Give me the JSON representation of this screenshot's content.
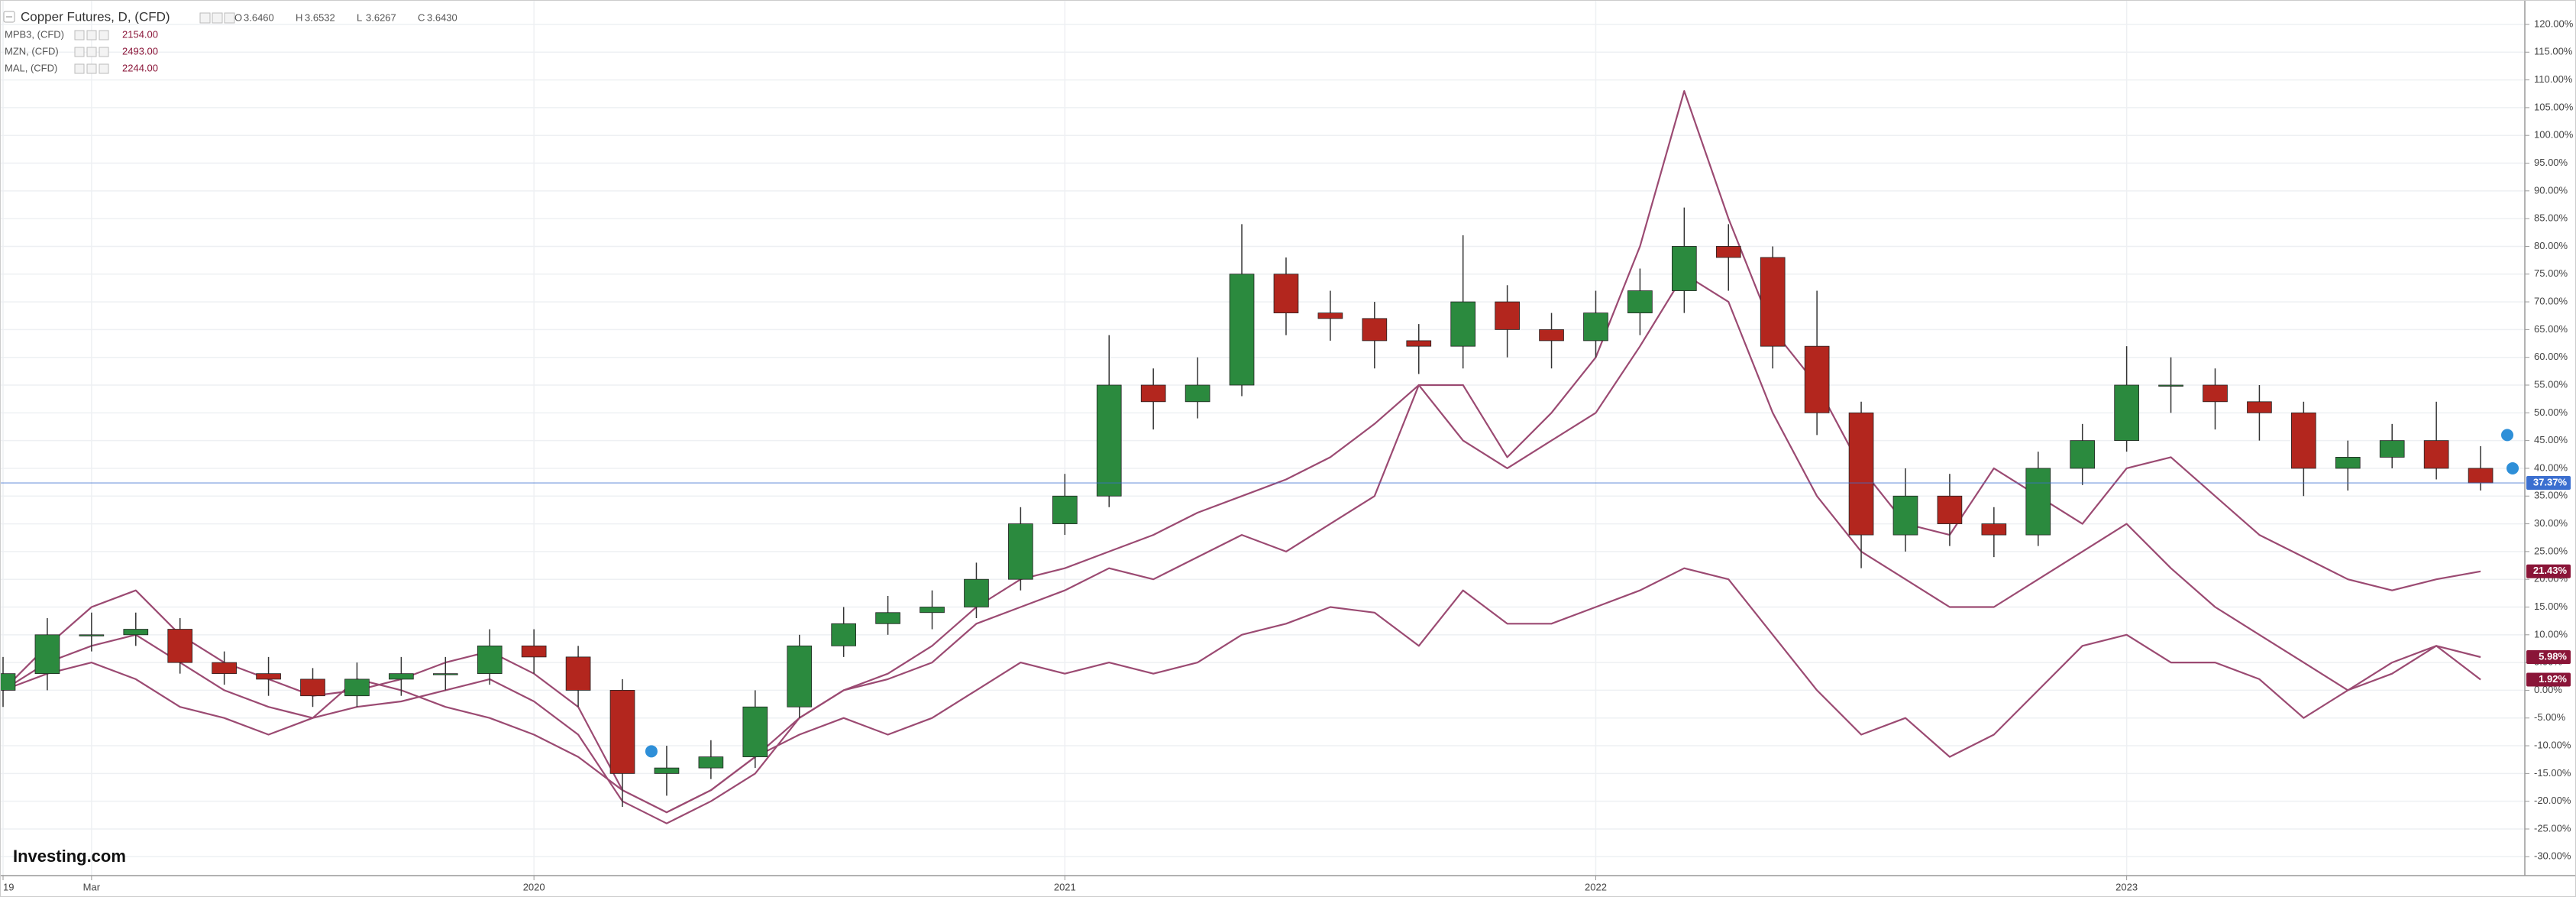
{
  "chart_data": {
    "type": "candlestick",
    "title": "Copper Futures, D, (CFD)",
    "quote": [
      {
        "key": "O",
        "value": "3.6460"
      },
      {
        "key": "H",
        "value": "3.6532"
      },
      {
        "key": "L",
        "value": "3.6267"
      },
      {
        "key": "C",
        "value": "3.6430"
      }
    ],
    "logo": "Investing.com",
    "x": [
      "2019-01",
      "2019-02",
      "2019-03",
      "2019-04",
      "2019-05",
      "2019-06",
      "2019-07",
      "2019-08",
      "2019-09",
      "2019-10",
      "2019-11",
      "2019-12",
      "2020-01",
      "2020-02",
      "2020-03",
      "2020-04",
      "2020-05",
      "2020-06",
      "2020-07",
      "2020-08",
      "2020-09",
      "2020-10",
      "2020-11",
      "2020-12",
      "2021-01",
      "2021-02",
      "2021-03",
      "2021-04",
      "2021-05",
      "2021-06",
      "2021-07",
      "2021-08",
      "2021-09",
      "2021-10",
      "2021-11",
      "2021-12",
      "2022-01",
      "2022-02",
      "2022-03",
      "2022-04",
      "2022-05",
      "2022-06",
      "2022-07",
      "2022-08",
      "2022-09",
      "2022-10",
      "2022-11",
      "2022-12",
      "2023-01",
      "2023-02",
      "2023-03",
      "2023-04",
      "2023-05",
      "2023-06",
      "2023-07",
      "2023-08",
      "2023-09"
    ],
    "xlim": [
      "2019-01",
      "2023-10"
    ],
    "xticks": [
      {
        "value": "2019-01",
        "label": "19"
      },
      {
        "value": "2019-03",
        "label": "Mar"
      },
      {
        "value": "2020-01",
        "label": "2020"
      },
      {
        "value": "2021-01",
        "label": "2021"
      },
      {
        "value": "2022-01",
        "label": "2022"
      },
      {
        "value": "2023-01",
        "label": "2023"
      }
    ],
    "ylim": [
      -33.4,
      124.4
    ],
    "yticks": [
      {
        "value": -30,
        "label": "-30.00%"
      },
      {
        "value": -25,
        "label": "-25.00%"
      },
      {
        "value": -20,
        "label": "-20.00%"
      },
      {
        "value": -15,
        "label": "-15.00%"
      },
      {
        "value": -10,
        "label": "-10.00%"
      },
      {
        "value": -5,
        "label": "-5.00%"
      },
      {
        "value": 0,
        "label": "0.00%"
      },
      {
        "value": 5,
        "label": "5.00%"
      },
      {
        "value": 10,
        "label": "10.00%"
      },
      {
        "value": 15,
        "label": "15.00%"
      },
      {
        "value": 20,
        "label": "20.00%"
      },
      {
        "value": 25,
        "label": "25.00%"
      },
      {
        "value": 30,
        "label": "30.00%"
      },
      {
        "value": 35,
        "label": "35.00%"
      },
      {
        "value": 40,
        "label": "40.00%"
      },
      {
        "value": 45,
        "label": "45.00%"
      },
      {
        "value": 50,
        "label": "50.00%"
      },
      {
        "value": 55,
        "label": "55.00%"
      },
      {
        "value": 60,
        "label": "60.00%"
      },
      {
        "value": 65,
        "label": "65.00%"
      },
      {
        "value": 70,
        "label": "70.00%"
      },
      {
        "value": 75,
        "label": "75.00%"
      },
      {
        "value": 80,
        "label": "80.00%"
      },
      {
        "value": 85,
        "label": "85.00%"
      },
      {
        "value": 90,
        "label": "90.00%"
      },
      {
        "value": 95,
        "label": "95.00%"
      },
      {
        "value": 100,
        "label": "100.00%"
      },
      {
        "value": 105,
        "label": "105.00%"
      },
      {
        "value": 110,
        "label": "110.00%"
      },
      {
        "value": 115,
        "label": "115.00%"
      },
      {
        "value": 120,
        "label": "120.00%"
      }
    ],
    "grid": true,
    "candles": {
      "up_color": "#2b8a3e",
      "down_color": "#b3261e",
      "open": [
        0,
        3,
        10,
        10,
        11,
        5,
        3,
        2,
        -1,
        2,
        3,
        3,
        8,
        6,
        0,
        -15,
        -14,
        -12,
        -3,
        8,
        12,
        14,
        15,
        20,
        30,
        35,
        55,
        52,
        55,
        75,
        68,
        67,
        63,
        62,
        70,
        65,
        63,
        68,
        72,
        80,
        78,
        62,
        50,
        28,
        35,
        30,
        28,
        40,
        45,
        55,
        55,
        52,
        50,
        40,
        42,
        45,
        40
      ],
      "high": [
        6,
        13,
        14,
        14,
        13,
        7,
        6,
        4,
        5,
        6,
        6,
        11,
        11,
        8,
        2,
        -10,
        -9,
        0,
        10,
        15,
        17,
        18,
        23,
        33,
        39,
        64,
        58,
        60,
        84,
        78,
        72,
        70,
        66,
        82,
        73,
        68,
        72,
        76,
        87,
        84,
        80,
        72,
        52,
        40,
        39,
        33,
        43,
        48,
        62,
        60,
        58,
        55,
        52,
        45,
        48,
        52,
        44
      ],
      "low": [
        -3,
        0,
        7,
        8,
        3,
        1,
        -1,
        -3,
        -3,
        -1,
        0,
        1,
        3,
        -3,
        -21,
        -19,
        -16,
        -14,
        -5,
        6,
        10,
        11,
        13,
        18,
        28,
        33,
        47,
        49,
        53,
        64,
        63,
        58,
        57,
        58,
        60,
        58,
        60,
        64,
        68,
        72,
        58,
        46,
        22,
        25,
        26,
        24,
        26,
        37,
        43,
        50,
        47,
        45,
        35,
        36,
        40,
        38,
        36
      ],
      "close": [
        3,
        10,
        10,
        11,
        5,
        3,
        2,
        -1,
        2,
        3,
        3,
        8,
        6,
        0,
        -15,
        -14,
        -12,
        -3,
        8,
        12,
        14,
        15,
        20,
        30,
        35,
        55,
        52,
        55,
        75,
        68,
        67,
        63,
        62,
        70,
        65,
        63,
        68,
        72,
        80,
        78,
        62,
        50,
        28,
        35,
        30,
        28,
        40,
        45,
        55,
        55,
        52,
        50,
        40,
        42,
        45,
        40,
        37.37
      ],
      "price_label": "37.37%",
      "price_color": "#3b6fd0"
    },
    "series": [
      {
        "name": "MPB3, (CFD)",
        "last": "2154.00",
        "price_label": "5.98%",
        "color": "#9b4a72",
        "values": [
          0,
          3,
          5,
          2,
          -3,
          -5,
          -8,
          -5,
          2,
          0,
          -3,
          -5,
          -8,
          -12,
          -18,
          -22,
          -18,
          -12,
          -8,
          -5,
          -8,
          -5,
          0,
          5,
          3,
          5,
          3,
          5,
          10,
          12,
          15,
          14,
          8,
          18,
          12,
          12,
          15,
          18,
          22,
          20,
          10,
          0,
          -8,
          -5,
          -12,
          -8,
          0,
          8,
          10,
          5,
          5,
          2,
          -5,
          0,
          5,
          8,
          5.98
        ]
      },
      {
        "name": "MZN, (CFD)",
        "last": "2493.00",
        "price_label": "1.92%",
        "color": "#9b4a72",
        "values": [
          0,
          5,
          8,
          10,
          5,
          0,
          -3,
          -5,
          -3,
          -2,
          0,
          2,
          -2,
          -8,
          -20,
          -24,
          -20,
          -15,
          -5,
          0,
          2,
          5,
          12,
          15,
          18,
          22,
          20,
          24,
          28,
          25,
          30,
          35,
          55,
          45,
          40,
          45,
          50,
          62,
          75,
          70,
          50,
          35,
          25,
          20,
          15,
          15,
          20,
          25,
          30,
          22,
          15,
          10,
          5,
          0,
          3,
          8,
          1.92
        ]
      },
      {
        "name": "MAL, (CFD)",
        "last": "2244.00",
        "price_label": "21.43%",
        "color": "#9b4a72",
        "values": [
          0,
          8,
          15,
          18,
          10,
          5,
          2,
          -1,
          0,
          2,
          5,
          7,
          3,
          -3,
          -18,
          -22,
          -18,
          -12,
          -5,
          0,
          3,
          8,
          15,
          20,
          22,
          25,
          28,
          32,
          35,
          38,
          42,
          48,
          55,
          55,
          42,
          50,
          60,
          80,
          108,
          85,
          65,
          55,
          40,
          30,
          28,
          40,
          35,
          30,
          40,
          42,
          35,
          28,
          24,
          20,
          18,
          20,
          21.43
        ]
      }
    ],
    "badge_color": "#8a1538"
  }
}
